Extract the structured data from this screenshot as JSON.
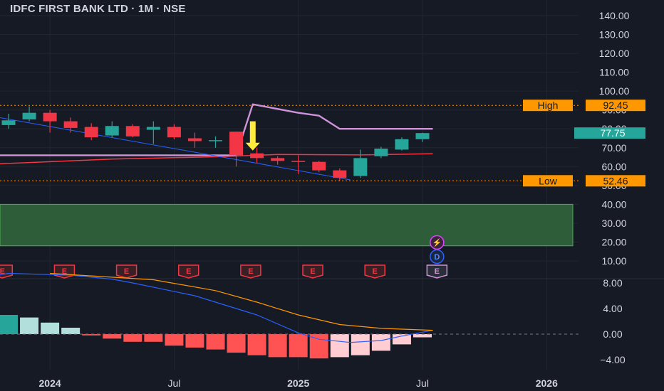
{
  "header": {
    "title": "IDFC FIRST BANK LTD · 1M · NSE"
  },
  "colors": {
    "background": "#161a25",
    "bull": "#26a69a",
    "bear": "#f23645",
    "grid": "#222632",
    "axis_text": "#d1d4dc",
    "trend_blue": "#2962ff",
    "ma_red": "#f23645",
    "ma_lavender": "#ce93d8",
    "level_orange": "#ff9800",
    "support_zone": "#2e5d3a",
    "macd_line": "#2962ff",
    "signal_line": "#ff9800",
    "hist_pos_strong": "#b2dfdb",
    "hist_neg_strong": "#ff5252",
    "hist_neg_weak": "#ffcdd2",
    "arrow_yellow": "#ffeb3b"
  },
  "chart_data": [
    {
      "type": "candlestick",
      "title": "IDFC FIRST BANK LTD · 1M · NSE",
      "y_axis": {
        "ticks": [
          "140.00",
          "130.00",
          "120.00",
          "110.00",
          "100.00",
          "90.00",
          "80.00",
          "70.00",
          "60.00",
          "50.00",
          "40.00",
          "30.00",
          "20.00",
          "10.00"
        ],
        "ylim": [
          5,
          142
        ]
      },
      "x_axis": {
        "ticks": [
          {
            "label": "2024",
            "index": 2,
            "bold": true
          },
          {
            "label": "Jul",
            "index": 8,
            "bold": false
          },
          {
            "label": "2025",
            "index": 14,
            "bold": true
          },
          {
            "label": "Jul",
            "index": 20,
            "bold": false
          },
          {
            "label": "2026",
            "index": 26,
            "bold": true
          }
        ]
      },
      "candles": [
        {
          "o": 82.0,
          "h": 88.0,
          "l": 80.0,
          "c": 84.5
        },
        {
          "o": 85.0,
          "h": 92.0,
          "l": 84.0,
          "c": 88.5
        },
        {
          "o": 88.5,
          "h": 90.0,
          "l": 78.0,
          "c": 84.0
        },
        {
          "o": 84.0,
          "h": 86.0,
          "l": 78.0,
          "c": 80.5
        },
        {
          "o": 81.0,
          "h": 83.0,
          "l": 74.0,
          "c": 75.5
        },
        {
          "o": 76.5,
          "h": 84.0,
          "l": 75.5,
          "c": 81.5
        },
        {
          "o": 81.5,
          "h": 82.5,
          "l": 75.5,
          "c": 76.0
        },
        {
          "o": 79.5,
          "h": 84.0,
          "l": 72.0,
          "c": 81.0
        },
        {
          "o": 81.0,
          "h": 82.5,
          "l": 74.5,
          "c": 75.5
        },
        {
          "o": 75.0,
          "h": 78.0,
          "l": 70.0,
          "c": 73.5
        },
        {
          "o": 74.0,
          "h": 76.0,
          "l": 70.0,
          "c": 74.0
        },
        {
          "o": 78.5,
          "h": 78.5,
          "l": 60.0,
          "c": 66.0
        },
        {
          "o": 67.0,
          "h": 70.0,
          "l": 62.0,
          "c": 64.5
        },
        {
          "o": 64.5,
          "h": 65.5,
          "l": 61.0,
          "c": 63.0
        },
        {
          "o": 63.0,
          "h": 66.0,
          "l": 56.0,
          "c": 62.5
        },
        {
          "o": 62.5,
          "h": 63.0,
          "l": 57.0,
          "c": 58.0
        },
        {
          "o": 58.0,
          "h": 59.0,
          "l": 52.5,
          "c": 54.0
        },
        {
          "o": 55.0,
          "h": 69.0,
          "l": 54.0,
          "c": 64.5
        },
        {
          "o": 65.5,
          "h": 70.5,
          "l": 64.5,
          "c": 69.5
        },
        {
          "o": 69.0,
          "h": 75.5,
          "l": 68.5,
          "c": 74.5
        },
        {
          "o": 74.5,
          "h": 78.0,
          "l": 73.0,
          "c": 77.75
        }
      ],
      "levels": [
        {
          "label": "High",
          "value": 92.45,
          "value_label": "92.45"
        },
        {
          "label": "Low",
          "value": 52.46,
          "value_label": "52.46"
        }
      ],
      "last_price": {
        "value": 77.75,
        "label": "77.75"
      },
      "support_zone": {
        "from": 18.0,
        "to": 40.0
      },
      "trendline": {
        "from": {
          "index": -2.5,
          "value": 90.0
        },
        "to": {
          "index": 16.5,
          "value": 53.0
        }
      },
      "ma_red": [
        {
          "index": -2.5,
          "value": 60.5
        },
        {
          "index": 5,
          "value": 64.0
        },
        {
          "index": 10,
          "value": 65.2
        },
        {
          "index": 13,
          "value": 66.4
        },
        {
          "index": 17,
          "value": 66.2
        },
        {
          "index": 20.5,
          "value": 66.8
        }
      ],
      "ma_lavender": [
        {
          "index": -2.5,
          "value": 66.0
        },
        {
          "index": 9,
          "value": 66.0
        },
        {
          "index": 11,
          "value": 66.0
        },
        {
          "index": 11.8,
          "value": 93.0
        },
        {
          "index": 14,
          "value": 88.5
        },
        {
          "index": 15,
          "value": 87.0
        },
        {
          "index": 16,
          "value": 80.0
        },
        {
          "index": 20.5,
          "value": 80.0
        }
      ],
      "arrow": {
        "index": 11.8,
        "from": 84.0,
        "to": 68.5
      },
      "earnings_markers": [
        {
          "index": -0.3,
          "label": "E"
        },
        {
          "index": 2.7,
          "label": "E"
        },
        {
          "index": 5.7,
          "label": "E"
        },
        {
          "index": 8.7,
          "label": "E"
        },
        {
          "index": 11.7,
          "label": "E"
        },
        {
          "index": 14.7,
          "label": "E"
        },
        {
          "index": 17.7,
          "label": "E"
        },
        {
          "index": 20.7,
          "label": "E"
        }
      ],
      "event_icons": [
        {
          "index": 20.7,
          "label": "⚡",
          "value": 22.0
        },
        {
          "index": 20.7,
          "label": "D",
          "value": 14.0
        }
      ]
    },
    {
      "type": "histogram+line",
      "y_axis": {
        "ticks": [
          "8.00",
          "4.00",
          "0.00",
          "−4.00"
        ],
        "ylim": [
          -4.8,
          9.5
        ]
      },
      "histogram": [
        3.0,
        2.6,
        1.8,
        1.0,
        -0.2,
        -0.7,
        -1.2,
        -1.2,
        -1.8,
        -2.1,
        -2.4,
        -2.9,
        -3.3,
        -3.6,
        -3.6,
        -3.8,
        -3.6,
        -3.3,
        -2.6,
        -1.6,
        -0.5
      ],
      "macd": [
        {
          "index": -2.5,
          "value": 8.0
        },
        {
          "index": 0,
          "value": 9.5
        },
        {
          "index": 3,
          "value": 9.2
        },
        {
          "index": 5,
          "value": 8.6
        },
        {
          "index": 6,
          "value": 8.0
        },
        {
          "index": 9,
          "value": 6.0
        },
        {
          "index": 12,
          "value": 3.0
        },
        {
          "index": 14,
          "value": 0.2
        },
        {
          "index": 15,
          "value": -0.8
        },
        {
          "index": 16.5,
          "value": -1.3
        },
        {
          "index": 18,
          "value": -1.0
        },
        {
          "index": 19,
          "value": -0.3
        },
        {
          "index": 20.5,
          "value": 0.6
        }
      ],
      "signal": [
        {
          "index": 2,
          "value": 9.5
        },
        {
          "index": 7,
          "value": 8.5
        },
        {
          "index": 10,
          "value": 6.8
        },
        {
          "index": 12,
          "value": 5.0
        },
        {
          "index": 14,
          "value": 3.0
        },
        {
          "index": 16,
          "value": 1.5
        },
        {
          "index": 18,
          "value": 0.9
        },
        {
          "index": 20.5,
          "value": 0.6
        }
      ]
    }
  ]
}
